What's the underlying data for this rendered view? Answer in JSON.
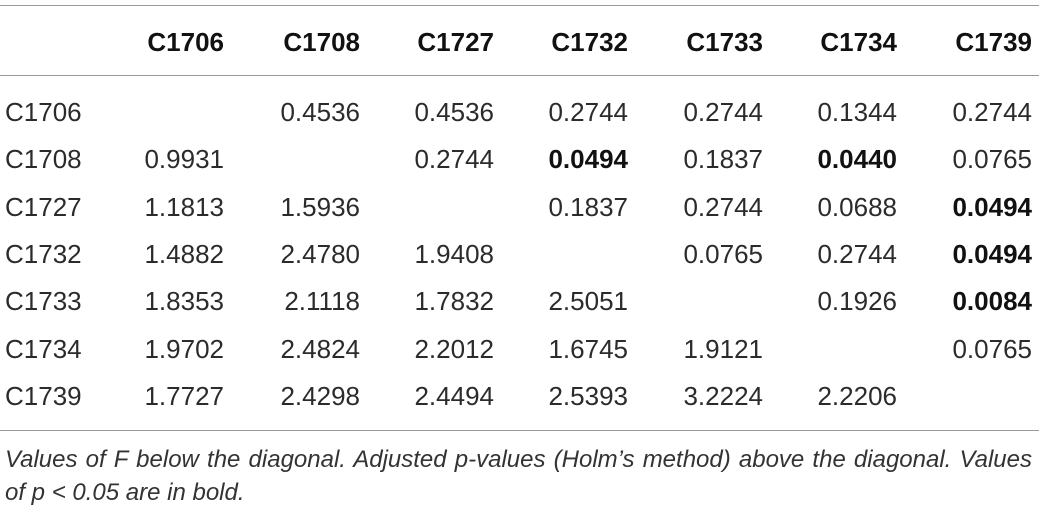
{
  "table": {
    "columns": [
      "C1706",
      "C1708",
      "C1727",
      "C1732",
      "C1733",
      "C1734",
      "C1739"
    ],
    "rows": [
      {
        "label": "C1706",
        "cells": [
          null,
          "0.4536",
          "0.4536",
          "0.2744",
          "0.2744",
          "0.1344",
          "0.2744"
        ]
      },
      {
        "label": "C1708",
        "cells": [
          "0.9931",
          null,
          "0.2744",
          {
            "text": "0.0494",
            "bold": true
          },
          "0.1837",
          {
            "text": "0.0440",
            "bold": true
          },
          "0.0765"
        ]
      },
      {
        "label": "C1727",
        "cells": [
          "1.1813",
          "1.5936",
          null,
          "0.1837",
          "0.2744",
          "0.0688",
          {
            "text": "0.0494",
            "bold": true
          }
        ]
      },
      {
        "label": "C1732",
        "cells": [
          "1.4882",
          "2.4780",
          "1.9408",
          null,
          "0.0765",
          "0.2744",
          {
            "text": "0.0494",
            "bold": true
          }
        ]
      },
      {
        "label": "C1733",
        "cells": [
          "1.8353",
          "2.1118",
          "1.7832",
          "2.5051",
          null,
          "0.1926",
          {
            "text": "0.0084",
            "bold": true
          }
        ]
      },
      {
        "label": "C1734",
        "cells": [
          "1.9702",
          "2.4824",
          "2.2012",
          "1.6745",
          "1.9121",
          null,
          "0.0765"
        ]
      },
      {
        "label": "C1739",
        "cells": [
          "1.7727",
          "2.4298",
          "2.4494",
          "2.5393",
          "3.2224",
          "2.2206",
          null
        ]
      }
    ],
    "footnote": "Values of F below the diagonal. Adjusted p-values (Holm’s method) above the diagonal. Values of p < 0.05 are in bold."
  }
}
